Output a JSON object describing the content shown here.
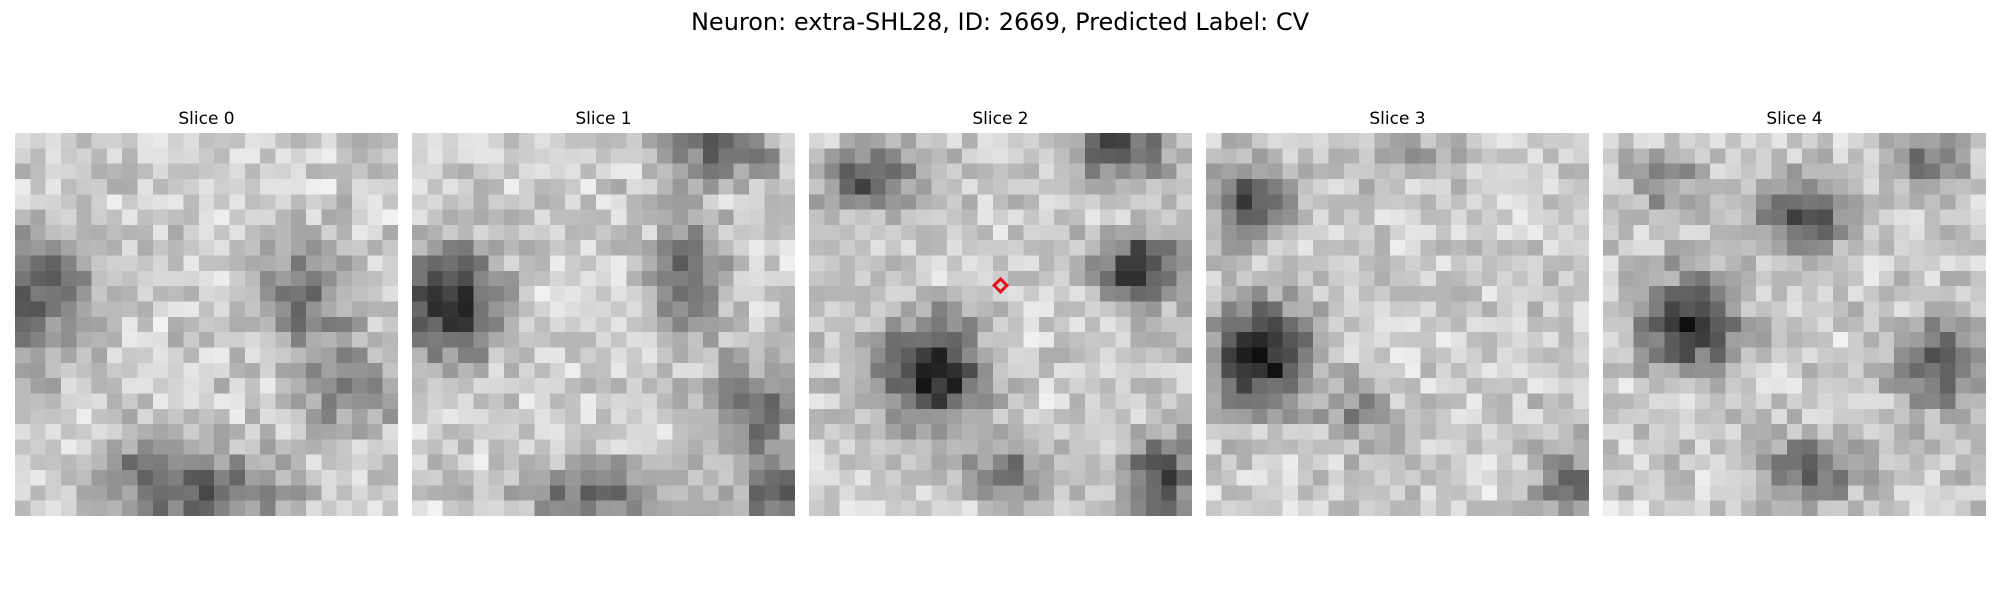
{
  "figure": {
    "title": "Neuron: extra-SHL28, ID: 2669, Predicted Label: CV"
  },
  "colors": {
    "marker": "#e8141b",
    "colormap": "gray"
  },
  "marker": {
    "shape": "diamond",
    "slice": 2
  },
  "slices": [
    {
      "label": "Slice 0"
    },
    {
      "label": "Slice 1"
    },
    {
      "label": "Slice 2"
    },
    {
      "label": "Slice 3"
    },
    {
      "label": "Slice 4"
    }
  ]
}
